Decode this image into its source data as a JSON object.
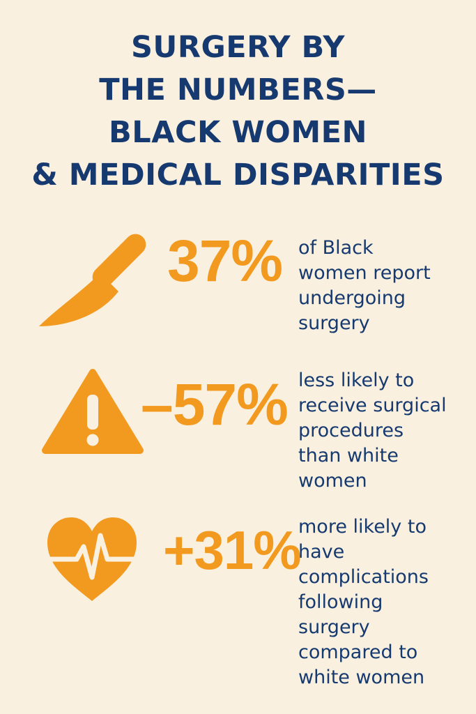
{
  "title": {
    "lines": [
      "SURGERY BY",
      "THE NUMBERS—",
      "BLACK WOMEN",
      "& MEDICAL DISPARITIES"
    ]
  },
  "colors": {
    "background": "#f9f0df",
    "title": "#163a70",
    "accent": "#f29a1f",
    "body_text": "#163a70"
  },
  "stats": [
    {
      "icon": "scalpel-icon",
      "value": "37%",
      "lines": [
        "of Black",
        "women report",
        "undergoing",
        "surgery"
      ]
    },
    {
      "icon": "warning-icon",
      "value": "–57%",
      "lines": [
        "less likely to",
        "receive surgical",
        "procedures",
        "than white",
        "women"
      ]
    },
    {
      "icon": "heart-pulse-icon",
      "value": "+31%",
      "lines": [
        "more likely to",
        "have",
        "complications",
        "following",
        "surgery",
        "compared to",
        "white women"
      ]
    }
  ]
}
